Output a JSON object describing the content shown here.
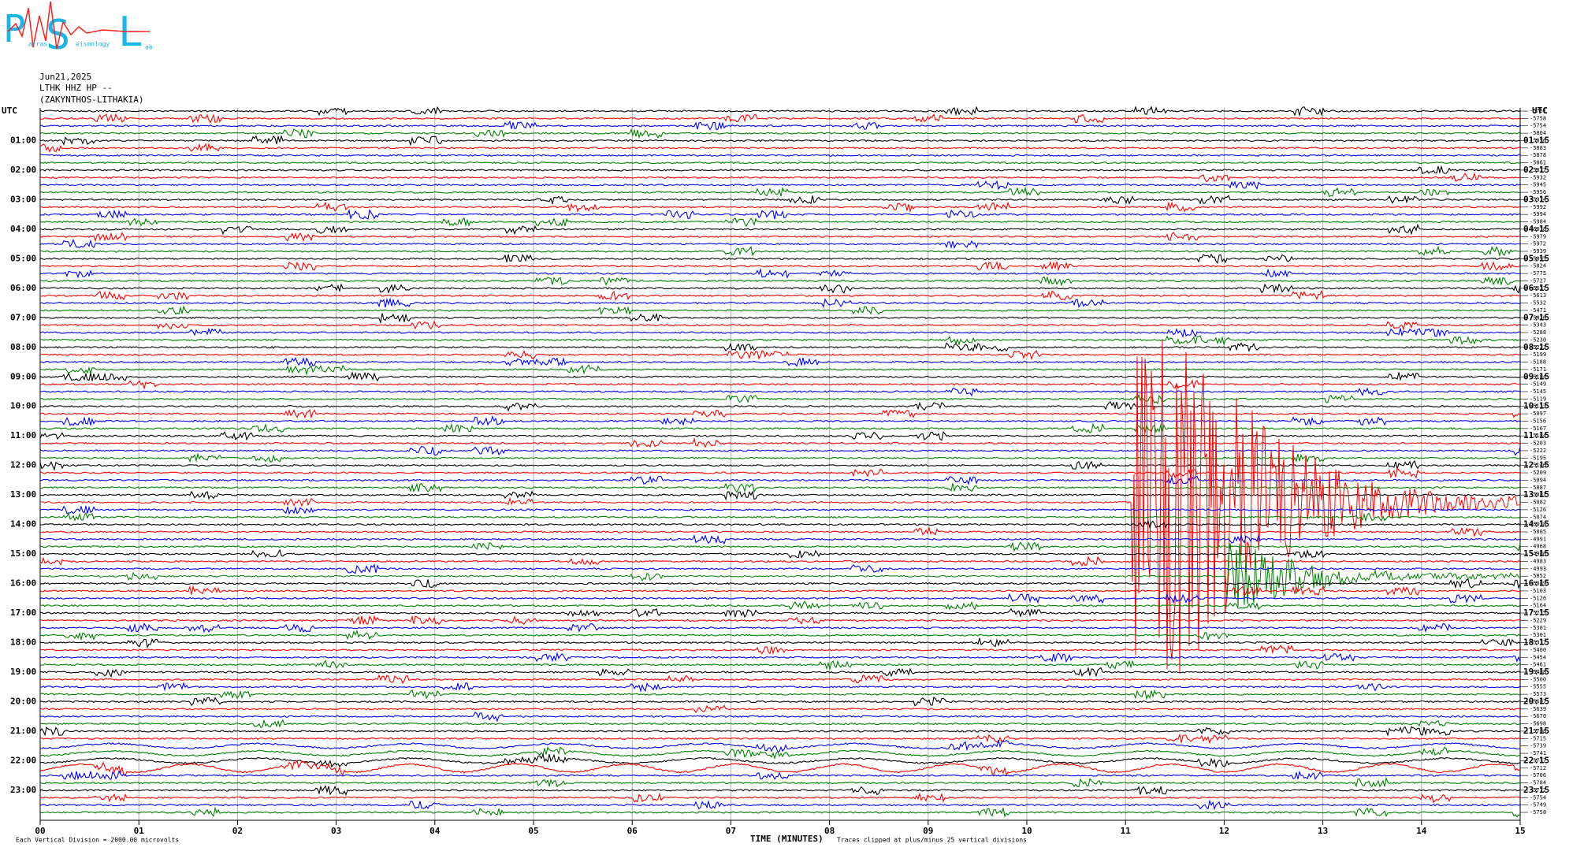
{
  "header": {
    "logo_letters": [
      "P",
      "S",
      "L"
    ],
    "logo_words": [
      "atras",
      "eismology",
      "ab"
    ],
    "date": "Jun21,2025",
    "station": "LTHK HHZ HP --",
    "location": "(ZAKYNTHOS-LITHAKIA)"
  },
  "chart_data": {
    "type": "helicorder",
    "left_axis_label": "UTC",
    "right_axis_label": "UTC",
    "left_times": [
      "01:00",
      "02:00",
      "03:00",
      "04:00",
      "05:00",
      "06:00",
      "07:00",
      "08:00",
      "09:00",
      "10:00",
      "11:00",
      "12:00",
      "13:00",
      "14:00",
      "15:00",
      "16:00",
      "17:00",
      "18:00",
      "19:00",
      "20:00",
      "21:00",
      "22:00",
      "23:00"
    ],
    "right_times": [
      "01:15",
      "02:15",
      "03:15",
      "04:15",
      "05:15",
      "06:15",
      "07:15",
      "08:15",
      "09:15",
      "10:15",
      "11:15",
      "12:15",
      "13:15",
      "14:15",
      "15:15",
      "16:15",
      "17:15",
      "18:15",
      "19:15",
      "20:15",
      "21:15",
      "22:15",
      "23:15"
    ],
    "trace_colors": [
      "#000000",
      "#ff0000",
      "#0000ff",
      "#008000"
    ],
    "offsets": [
      -5761,
      -5758,
      -5754,
      -5804,
      -5856,
      -5883,
      -5878,
      -5861,
      -5877,
      -5932,
      -5945,
      -5956,
      -5974,
      -5992,
      -5994,
      -5984,
      -6018,
      -5979,
      -5972,
      -5939,
      -5895,
      -5824,
      -5775,
      -5727,
      -5637,
      -5613,
      -5532,
      -5471,
      -5426,
      -5343,
      -5288,
      -5230,
      -5223,
      -5199,
      -5188,
      -5171,
      -5184,
      -5149,
      -5145,
      -5119,
      -5113,
      -5097,
      -5156,
      -5167,
      -5184,
      -5203,
      -5222,
      -5195,
      -5146,
      -5209,
      -5094,
      -5087,
      -5081,
      -5082,
      -5126,
      -5074,
      -5038,
      -5005,
      -4991,
      -4968,
      -4966,
      -4983,
      -4993,
      -5052,
      -5089,
      -5103,
      -5126,
      -5164,
      -5215,
      -5229,
      -5301,
      -5301,
      -5317,
      -5400,
      -5454,
      -5461,
      -5488,
      -5500,
      -5555,
      -5573,
      -5607,
      -5639,
      -5670,
      -5698,
      -5708,
      -5715,
      -5739,
      -5741,
      -5737,
      -5712,
      -5706,
      -5784,
      -5772,
      -5754,
      -5749,
      -5758
    ],
    "xlabel": "TIME (MINUTES)",
    "footer_left": "Each Vertical Division = 2000.00 microvolts",
    "footer_right": "Traces clipped at plus/minus 25 vertical divisions",
    "xlim": [
      0,
      15
    ],
    "xticks": [
      {
        "value": 0,
        "label": "00"
      },
      {
        "value": 1,
        "label": "01"
      },
      {
        "value": 2,
        "label": "02"
      },
      {
        "value": 3,
        "label": "03"
      },
      {
        "value": 4,
        "label": "04"
      },
      {
        "value": 5,
        "label": "05"
      },
      {
        "value": 6,
        "label": "06"
      },
      {
        "value": 7,
        "label": "07"
      },
      {
        "value": 8,
        "label": "08"
      },
      {
        "value": 9,
        "label": "09"
      },
      {
        "value": 10,
        "label": "10"
      },
      {
        "value": 11,
        "label": "11"
      },
      {
        "value": 12,
        "label": "12"
      },
      {
        "value": 13,
        "label": "13"
      },
      {
        "value": 14,
        "label": "14"
      },
      {
        "value": 15,
        "label": "15"
      }
    ],
    "grid": true
  }
}
